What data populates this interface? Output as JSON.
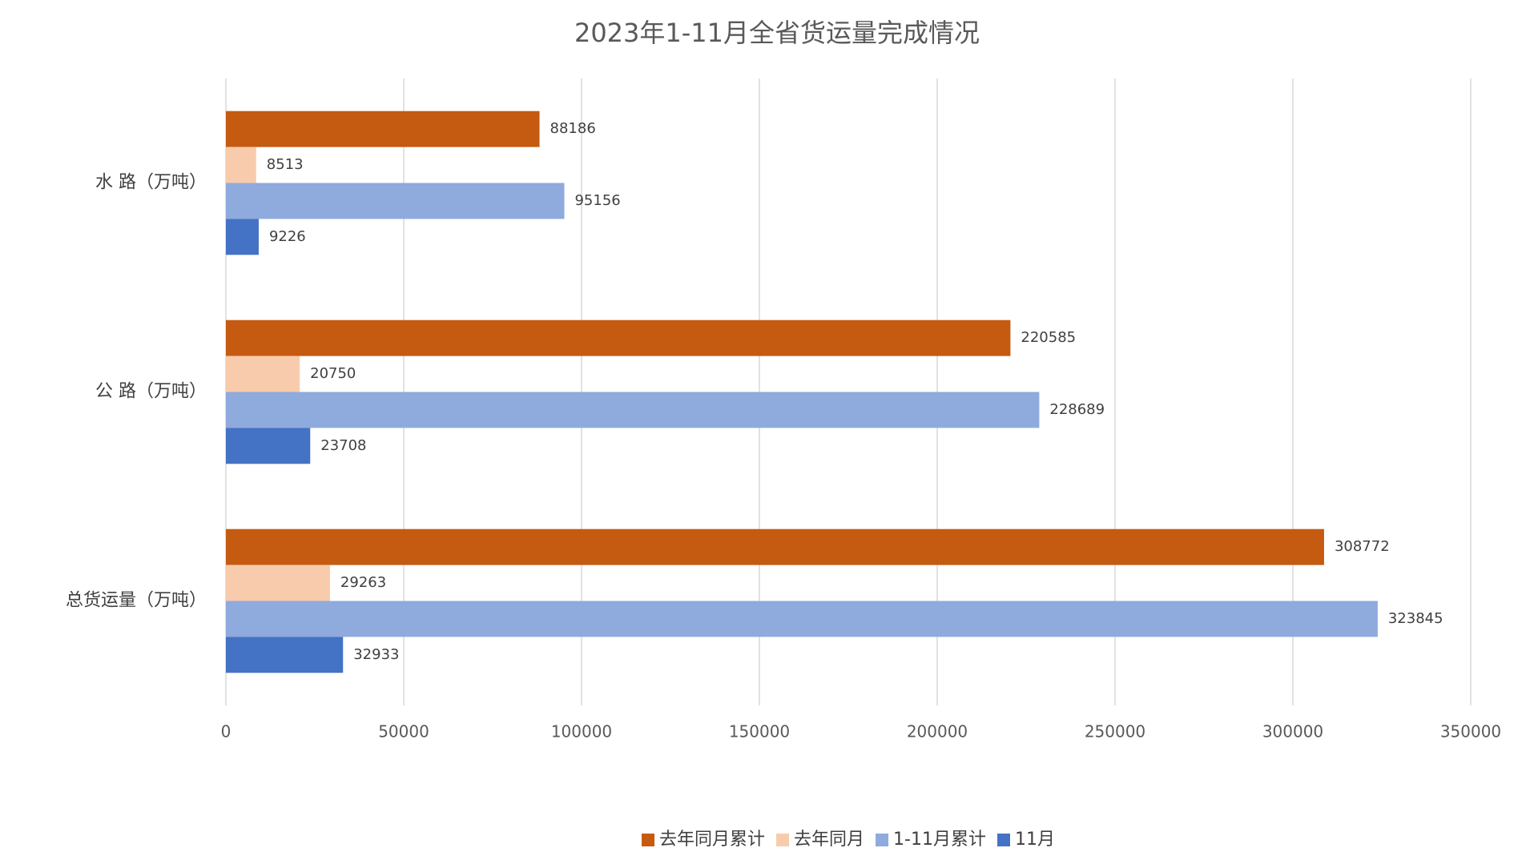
{
  "chart_data": {
    "type": "hbar",
    "title": "2023年1-11月全省货运量完成情况",
    "categories": [
      "水 路（万吨）",
      "公 路（万吨）",
      "总货运量（万吨）"
    ],
    "series": [
      {
        "name": "去年同月累计",
        "color": "#c55a11",
        "values": [
          88186,
          220585,
          308772
        ]
      },
      {
        "name": "去年同月",
        "color": "#f8cbad",
        "values": [
          8513,
          20750,
          29263
        ]
      },
      {
        "name": "1-11月累计",
        "color": "#8faadc",
        "values": [
          95156,
          228689,
          323845
        ]
      },
      {
        "name": "11月",
        "color": "#4472c4",
        "values": [
          9226,
          23708,
          32933
        ]
      }
    ],
    "xlim": [
      0,
      350000
    ],
    "xticks": [
      0,
      50000,
      100000,
      150000,
      200000,
      250000,
      300000,
      350000
    ],
    "grid": true,
    "legend": "bottom"
  }
}
